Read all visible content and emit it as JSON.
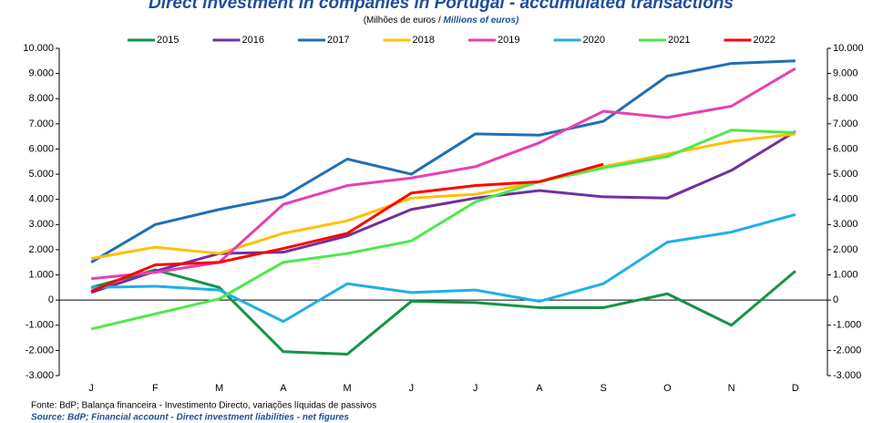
{
  "chart_data": {
    "type": "line",
    "title": "Direct investment in companies in Portugal - accumulated transactions",
    "subtitle_pt": "(Milhões de euros /",
    "subtitle_en": "Millions of euros)",
    "source_pt": "Fonte: BdP; Balança financeira - Investimento Directo, variações líquidas de passivos",
    "source_en": "Source: BdP; Financial account - Direct investment liabilities - net figures",
    "categories": [
      "J",
      "F",
      "M",
      "A",
      "M",
      "J",
      "J",
      "A",
      "S",
      "O",
      "N",
      "D"
    ],
    "series": [
      {
        "name": "2015",
        "color": "#139447",
        "values": [
          500,
          1200,
          500,
          -2050,
          -2150,
          -50,
          -100,
          -300,
          -300,
          250,
          -1000,
          1150
        ]
      },
      {
        "name": "2016",
        "color": "#7030a0",
        "values": [
          300,
          1150,
          1850,
          1900,
          2550,
          3600,
          4050,
          4350,
          4100,
          4050,
          5150,
          6700
        ]
      },
      {
        "name": "2017",
        "color": "#1f6fb5",
        "values": [
          1500,
          3000,
          3600,
          4100,
          5600,
          5000,
          6600,
          6550,
          7100,
          8900,
          9400,
          9500
        ]
      },
      {
        "name": "2018",
        "color": "#ffc000",
        "values": [
          1650,
          2100,
          1850,
          2650,
          3150,
          4050,
          4200,
          4700,
          5300,
          5800,
          6300,
          6600
        ]
      },
      {
        "name": "2019",
        "color": "#e83fb0",
        "values": [
          850,
          1100,
          1500,
          3800,
          4550,
          4850,
          5300,
          6250,
          7500,
          7250,
          7700,
          9200
        ]
      },
      {
        "name": "2020",
        "color": "#1fb0e8",
        "values": [
          500,
          550,
          400,
          -850,
          650,
          300,
          400,
          -50,
          650,
          2300,
          2700,
          3400
        ]
      },
      {
        "name": "2021",
        "color": "#4de84d",
        "values": [
          -1150,
          -550,
          50,
          1500,
          1850,
          2350,
          3900,
          4700,
          5250,
          5700,
          6750,
          6650
        ]
      },
      {
        "name": "2022",
        "color": "#ff0000",
        "values": [
          350,
          1400,
          1500,
          2050,
          2650,
          4250,
          4550,
          4700,
          5400,
          null,
          null,
          null
        ]
      }
    ],
    "ylim": [
      -3000,
      10000
    ],
    "yticks": [
      {
        "value": -3000,
        "label": "-3.000"
      },
      {
        "value": -2000,
        "label": "-2.000"
      },
      {
        "value": -1000,
        "label": "-1.000"
      },
      0,
      {
        "value": 1000,
        "label": "1.000"
      },
      {
        "value": 2000,
        "label": "2.000"
      },
      {
        "value": 3000,
        "label": "3.000"
      },
      {
        "value": 4000,
        "label": "4.000"
      },
      {
        "value": 5000,
        "label": "5.000"
      },
      {
        "value": 6000,
        "label": "6.000"
      },
      {
        "value": 7000,
        "label": "7.000"
      },
      {
        "value": 8000,
        "label": "8.000"
      },
      {
        "value": 9000,
        "label": "9.000"
      },
      {
        "value": 10000,
        "label": "10.000"
      }
    ],
    "grid": false
  }
}
